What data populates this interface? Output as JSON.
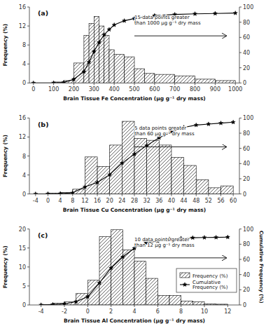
{
  "chart_data": [
    {
      "type": "histogram",
      "title": "(a)",
      "xlabel": "Brain Tissue Fe Concentration (μg g⁻¹ dry mass)",
      "ylabel": "Frequency (%)",
      "annotations": [
        "15 data points greater\nthan 1000 μg g⁻¹ dry mass"
      ],
      "bins": [
        0,
        100,
        150,
        200,
        250,
        275,
        300,
        325,
        350,
        375,
        400,
        450,
        500,
        550,
        600,
        700,
        800,
        900,
        1000
      ],
      "series": [
        {
          "type": "bar",
          "color": "white",
          "values": [
            0.0,
            0.2,
            0.5,
            4.2,
            10.0,
            12.5,
            14.0,
            12.0,
            10.0,
            7.0,
            6.0,
            5.5,
            3.0,
            2.0,
            1.8,
            1.5,
            0.8,
            0.5
          ]
        },
        {
          "type": "line",
          "axis": "y2",
          "color": "black",
          "marker": "star",
          "x": [
            0,
            100,
            150,
            200,
            250,
            275,
            300,
            325,
            350,
            375,
            400,
            450,
            500,
            550,
            600,
            700,
            800,
            900,
            1000
          ],
          "values": [
            0.0,
            0.2,
            0.7,
            4.9,
            14.9,
            27.4,
            41.4,
            53.4,
            63.4,
            70.4,
            76.4,
            81.9,
            84.9,
            86.9,
            88.7,
            90.2,
            91.0,
            91.5,
            92.0
          ]
        }
      ],
      "xlim": [
        -20,
        1020
      ],
      "xticks": [
        0,
        100,
        200,
        300,
        400,
        500,
        600,
        700,
        800,
        900,
        1000
      ],
      "ylim": [
        0,
        16
      ],
      "yticks": [
        0,
        4,
        8,
        12,
        16
      ],
      "y2lim": [
        0,
        100
      ],
      "y2ticks": [
        0,
        20,
        40,
        60,
        80,
        100
      ]
    },
    {
      "type": "histogram",
      "title": "(b)",
      "xlabel": "Brain Tissue Cu Concentration (μg g⁻¹ dry mass)",
      "ylabel": "Frequency (%)",
      "annotations": [
        "5 data points greater\nthan 60 μg g⁻¹ dry mass"
      ],
      "bins": [
        -4,
        0,
        4,
        8,
        12,
        16,
        20,
        24,
        28,
        32,
        36,
        40,
        44,
        48,
        52,
        56,
        60
      ],
      "series": [
        {
          "type": "bar",
          "color": "white",
          "values": [
            0.0,
            0.2,
            0.3,
            1.0,
            7.8,
            5.8,
            10.3,
            15.3,
            11.7,
            11.3,
            10.3,
            7.7,
            6.0,
            3.0,
            1.3,
            1.7
          ]
        },
        {
          "type": "line",
          "axis": "y2",
          "color": "black",
          "marker": "star",
          "x": [
            -4,
            0,
            4,
            8,
            12,
            16,
            20,
            24,
            28,
            32,
            36,
            40,
            44,
            48,
            52,
            56,
            60
          ],
          "values": [
            0.0,
            0.2,
            0.5,
            1.5,
            9.3,
            15.1,
            25.4,
            40.7,
            52.4,
            63.7,
            74.0,
            81.7,
            87.7,
            90.7,
            92.0,
            93.3,
            94.5
          ]
        }
      ],
      "xlim": [
        -6,
        62
      ],
      "xticks": [
        -4,
        0,
        4,
        8,
        12,
        16,
        20,
        24,
        28,
        32,
        36,
        40,
        44,
        48,
        52,
        56,
        60
      ],
      "ylim": [
        0,
        16
      ],
      "yticks": [
        0,
        4,
        8,
        12,
        16
      ],
      "y2lim": [
        0,
        100
      ],
      "y2ticks": [
        0,
        20,
        40,
        60,
        80,
        100
      ]
    },
    {
      "type": "histogram",
      "title": "(c)",
      "xlabel": "Brain Tissue Al Concentration (μg g⁻¹ dry mass)",
      "ylabel": "Frequency (%)",
      "y2label": "Cumulative Frequency (%)",
      "annotations": [
        "10 data points greater\nthan 12 μg g⁻¹ dry mass"
      ],
      "bins": [
        -4,
        -3,
        -2,
        -1,
        0,
        1,
        2,
        3,
        4,
        5,
        6,
        7,
        8,
        9,
        10,
        11,
        12
      ],
      "series": [
        {
          "name": "Frequency (%)",
          "type": "bar",
          "color": "white",
          "values": [
            0.1,
            0.5,
            0.8,
            3.0,
            6.5,
            18.0,
            19.8,
            14.5,
            11.5,
            7.0,
            2.5,
            2.5,
            1.0,
            0.8,
            0.3,
            0.2
          ]
        },
        {
          "name": "Cumulative\nFrequency (%)",
          "type": "line",
          "axis": "y2",
          "color": "black",
          "marker": "star",
          "x": [
            -4,
            -3,
            -2,
            -1,
            0,
            1,
            2,
            3,
            4,
            5,
            6,
            7,
            8,
            9,
            10,
            11,
            12
          ],
          "values": [
            0.1,
            0.6,
            1.4,
            4.4,
            10.9,
            28.9,
            48.7,
            63.2,
            74.7,
            81.7,
            84.2,
            86.7,
            87.7,
            88.5,
            88.8,
            89.0,
            89.3
          ]
        }
      ],
      "xlim": [
        -5,
        13
      ],
      "xticks": [
        -4,
        -2,
        0,
        2,
        4,
        6,
        8,
        10,
        12
      ],
      "ylim": [
        0,
        20
      ],
      "yticks": [
        0,
        5,
        10,
        15,
        20
      ],
      "y2lim": [
        0,
        100
      ],
      "y2ticks": [
        0,
        20,
        40,
        60,
        80,
        100
      ],
      "legend": "lower right"
    }
  ]
}
